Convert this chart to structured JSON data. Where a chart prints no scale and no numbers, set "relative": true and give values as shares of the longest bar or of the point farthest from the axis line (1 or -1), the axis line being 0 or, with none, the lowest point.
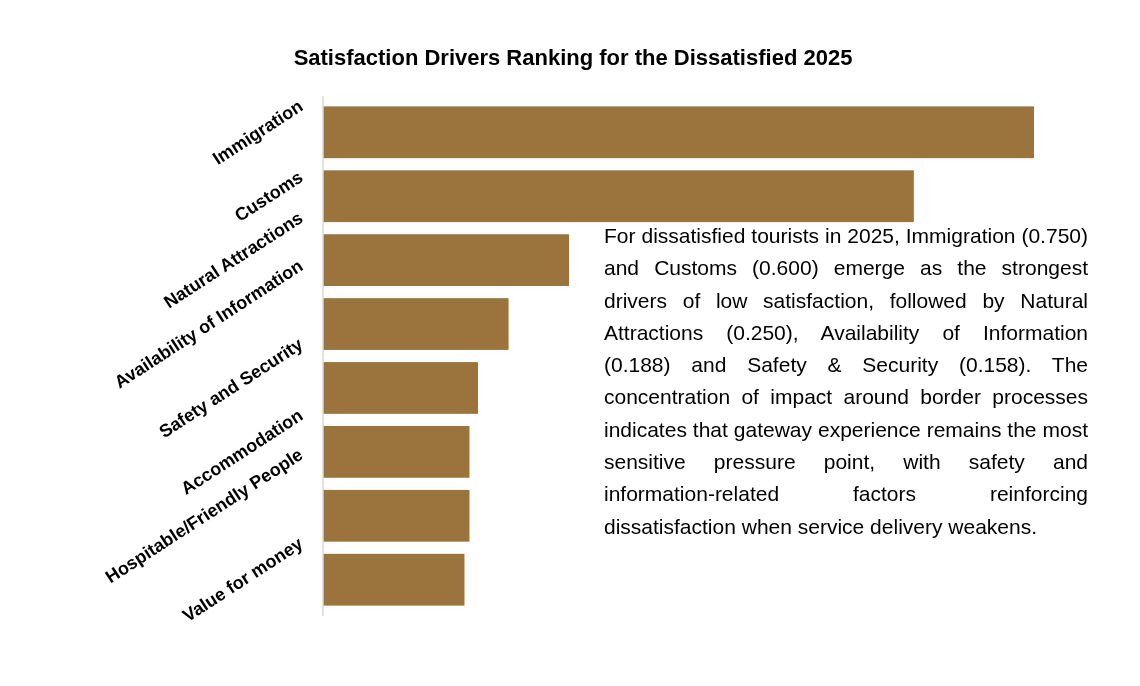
{
  "chart_data": {
    "type": "bar",
    "orientation": "horizontal",
    "relative": true,
    "title": "Satisfaction Drivers Ranking for the Dissatisfied 2025",
    "categories": [
      "Immigration",
      "Customs",
      "Natural Attractions",
      "Availability of Information",
      "Safety and Security",
      "Accommodation",
      "Hospitable/Friendly People",
      "Value for money"
    ],
    "values": [
      1,
      0.831,
      0.346,
      0.261,
      0.218,
      0.206,
      0.206,
      0.199
    ],
    "color": "#9b743d",
    "annotations": [
      "For dissatisfied tourists in 2025, Immigration (0.750) and Customs (0.600) emerge as the strongest drivers of low satisfaction, followed by Natural Attractions (0.250), Availability of Information (0.188) and Safety & Security (0.158). The concentration of impact around border processes indicates that gateway experience remains the most sensitive pressure point, with safety and information-related factors reinforcing dissatisfaction when service delivery weakens."
    ]
  }
}
